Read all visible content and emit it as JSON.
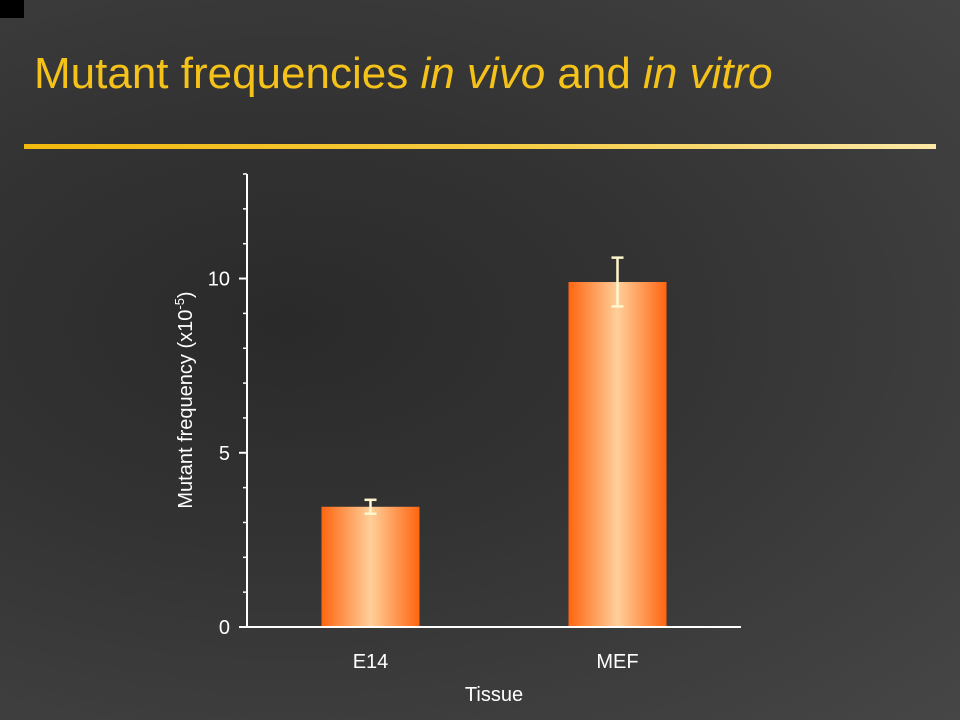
{
  "slide": {
    "title_parts": [
      "Mutant frequencies ",
      "in vivo",
      " and ",
      "in vitro"
    ]
  },
  "colors": {
    "title": "#f5c21a",
    "rule": "#f2b90d",
    "bar_edge": "#ff6510",
    "bar_center": "#ffcf9a",
    "axis": "#ffffff",
    "error_bar": "#fff6cc"
  },
  "chart_data": {
    "type": "bar",
    "categories": [
      "E14",
      "MEF"
    ],
    "values": [
      3.45,
      9.9
    ],
    "errors": [
      [
        3.25,
        3.65
      ],
      [
        9.2,
        10.6
      ]
    ],
    "xlabel": "Tissue",
    "ylabel": "Mutant frequency (x10-5)",
    "ylabel_parts": {
      "before": "Mutant frequency (x10",
      "sup": "-5",
      "after": ")"
    },
    "ylim": [
      0,
      13
    ],
    "major_ticks": [
      0,
      5,
      10
    ],
    "minor_tick_step": 1,
    "grid": false,
    "legend": "none"
  }
}
